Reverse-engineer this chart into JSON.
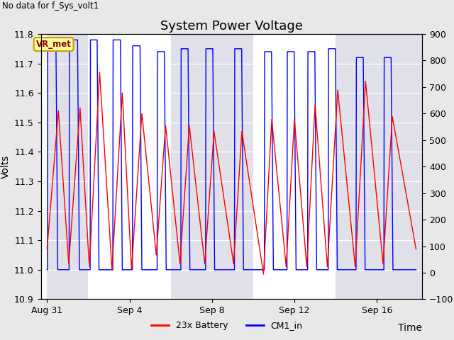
{
  "title": "System Power Voltage",
  "no_data_label": "No data for f_Sys_volt1",
  "ylabel_left": "Volts",
  "xlabel": "Time",
  "ylim_left": [
    10.9,
    11.8
  ],
  "ylim_right": [
    -100,
    900
  ],
  "yticks_left": [
    10.9,
    11.0,
    11.1,
    11.2,
    11.3,
    11.4,
    11.5,
    11.6,
    11.7,
    11.8
  ],
  "yticks_right": [
    -100,
    0,
    100,
    200,
    300,
    400,
    500,
    600,
    700,
    800,
    900
  ],
  "xtick_labels": [
    "Aug 31",
    "Sep 4",
    "Sep 8",
    "Sep 12",
    "Sep 16"
  ],
  "xtick_positions": [
    0,
    4,
    8,
    12,
    16
  ],
  "xmin": -0.3,
  "xmax": 18.2,
  "vr_met_label": "VR_met",
  "fig_bg": "#e8e8e8",
  "plot_bg": "#f0f0f0",
  "band_light": "#e8e8e8",
  "band_dark": "#d8d8e8",
  "grid_color": "#c8c8c8",
  "title_fontsize": 13,
  "label_fontsize": 10,
  "tick_fontsize": 9,
  "red_cycles": [
    {
      "t0": 0.0,
      "t_peak": 0.55,
      "peak": 11.54,
      "t_end": 1.05,
      "v_end": 11.02
    },
    {
      "t0": 1.05,
      "t_peak": 1.6,
      "peak": 11.55,
      "t_end": 2.05,
      "v_end": 11.01
    },
    {
      "t0": 2.05,
      "t_peak": 2.55,
      "peak": 11.67,
      "t_end": 3.15,
      "v_end": 11.0
    },
    {
      "t0": 3.15,
      "t_peak": 3.65,
      "peak": 11.6,
      "t_end": 4.1,
      "v_end": 11.0
    },
    {
      "t0": 4.1,
      "t_peak": 4.6,
      "peak": 11.53,
      "t_end": 5.3,
      "v_end": 11.05
    },
    {
      "t0": 5.3,
      "t_peak": 5.75,
      "peak": 11.49,
      "t_end": 6.45,
      "v_end": 11.02
    },
    {
      "t0": 6.45,
      "t_peak": 6.9,
      "peak": 11.49,
      "t_end": 7.65,
      "v_end": 11.02
    },
    {
      "t0": 7.65,
      "t_peak": 8.1,
      "peak": 11.47,
      "t_end": 9.05,
      "v_end": 11.02
    },
    {
      "t0": 9.05,
      "t_peak": 9.45,
      "peak": 11.47,
      "t_end": 10.5,
      "v_end": 10.985
    },
    {
      "t0": 10.5,
      "t_peak": 10.9,
      "peak": 11.51,
      "t_end": 11.6,
      "v_end": 11.01
    },
    {
      "t0": 11.6,
      "t_peak": 12.0,
      "peak": 11.51,
      "t_end": 12.6,
      "v_end": 11.01
    },
    {
      "t0": 12.6,
      "t_peak": 13.0,
      "peak": 11.56,
      "t_end": 13.6,
      "v_end": 11.01
    },
    {
      "t0": 13.6,
      "t_peak": 14.1,
      "peak": 11.61,
      "t_end": 14.95,
      "v_end": 11.01
    },
    {
      "t0": 14.95,
      "t_peak": 15.45,
      "peak": 11.64,
      "t_end": 16.3,
      "v_end": 11.02
    },
    {
      "t0": 16.3,
      "t_peak": 16.75,
      "peak": 11.52,
      "t_end": 17.9,
      "v_end": 11.07
    }
  ],
  "blue_cycles": [
    {
      "rise": 0.02,
      "top_end": 0.42,
      "fall": 0.52,
      "bot_end": 1.05,
      "peak": 11.78
    },
    {
      "rise": 1.07,
      "top_end": 1.47,
      "fall": 1.57,
      "bot_end": 2.07,
      "peak": 11.78
    },
    {
      "rise": 2.09,
      "top_end": 2.42,
      "fall": 2.52,
      "bot_end": 3.17,
      "peak": 11.78
    },
    {
      "rise": 3.19,
      "top_end": 3.55,
      "fall": 3.65,
      "bot_end": 4.12,
      "peak": 11.78
    },
    {
      "rise": 4.14,
      "top_end": 4.5,
      "fall": 4.6,
      "bot_end": 5.32,
      "peak": 11.76
    },
    {
      "rise": 5.34,
      "top_end": 5.68,
      "fall": 5.78,
      "bot_end": 6.47,
      "peak": 11.74
    },
    {
      "rise": 6.49,
      "top_end": 6.83,
      "fall": 6.93,
      "bot_end": 7.67,
      "peak": 11.75
    },
    {
      "rise": 7.69,
      "top_end": 8.03,
      "fall": 8.13,
      "bot_end": 9.07,
      "peak": 11.75
    },
    {
      "rise": 9.09,
      "top_end": 9.43,
      "fall": 9.53,
      "bot_end": 10.52,
      "peak": 11.75
    },
    {
      "rise": 10.54,
      "top_end": 10.88,
      "fall": 10.98,
      "bot_end": 11.62,
      "peak": 11.74
    },
    {
      "rise": 11.64,
      "top_end": 11.98,
      "fall": 12.08,
      "bot_end": 12.62,
      "peak": 11.74
    },
    {
      "rise": 12.64,
      "top_end": 12.98,
      "fall": 13.08,
      "bot_end": 13.62,
      "peak": 11.74
    },
    {
      "rise": 13.64,
      "top_end": 13.98,
      "fall": 14.08,
      "bot_end": 14.97,
      "peak": 11.75
    },
    {
      "rise": 14.99,
      "top_end": 15.33,
      "fall": 15.43,
      "bot_end": 16.32,
      "peak": 11.72
    },
    {
      "rise": 16.34,
      "top_end": 16.68,
      "fall": 16.78,
      "bot_end": 17.9,
      "peak": 11.72
    }
  ],
  "band_edges": [
    0.0,
    2.0,
    6.0,
    10.0,
    14.0,
    18.2
  ]
}
